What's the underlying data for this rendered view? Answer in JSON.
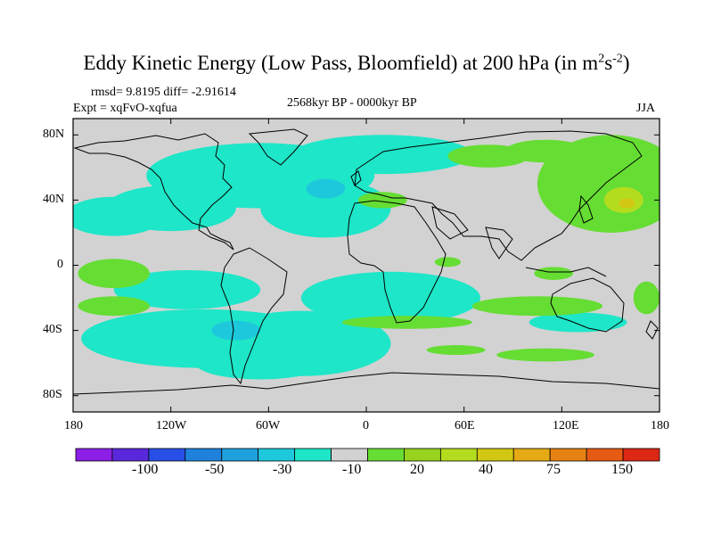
{
  "header": {
    "title_main": "Eddy Kinetic Energy (Low Pass, Bloomfield) at 200 hPa (in m",
    "title_sup1": "2",
    "title_mid": "s",
    "title_sup2": "-2",
    "title_end": ")",
    "stats": "rmsd= 9.8195 diff= -2.91614",
    "expt": "Expt = xqFvO-xqfua",
    "period": "2568kyr BP - 0000kyr BP",
    "season": "JJA"
  },
  "map": {
    "lat_labels": [
      "80N",
      "40N",
      "0",
      "40S",
      "80S"
    ],
    "lon_labels": [
      "180",
      "120W",
      "60W",
      "0",
      "60E",
      "120E",
      "180"
    ],
    "lat_range": [
      -90,
      90
    ],
    "lon_range": [
      -180,
      180
    ],
    "background_color": "#d2d2d2",
    "regions": [
      {
        "color": "#1ee6c8",
        "shape": "blob",
        "lon": -155,
        "lat": 30,
        "w": 30,
        "h": 12
      },
      {
        "color": "#1ee6c8",
        "shape": "blob",
        "lon": -120,
        "lat": 35,
        "w": 40,
        "h": 14
      },
      {
        "color": "#1ee6c8",
        "shape": "blob",
        "lon": -65,
        "lat": 55,
        "w": 70,
        "h": 20
      },
      {
        "color": "#1ee6c8",
        "shape": "blob",
        "lon": -25,
        "lat": 35,
        "w": 40,
        "h": 18
      },
      {
        "color": "#1ee6c8",
        "shape": "blob",
        "lon": 10,
        "lat": 68,
        "w": 55,
        "h": 12
      },
      {
        "color": "#1ee6c8",
        "shape": "blob",
        "lon": -110,
        "lat": -15,
        "w": 45,
        "h": 12
      },
      {
        "color": "#1ee6c8",
        "shape": "blob",
        "lon": 15,
        "lat": -20,
        "w": 55,
        "h": 16
      },
      {
        "color": "#1ee6c8",
        "shape": "blob",
        "lon": -100,
        "lat": -45,
        "w": 75,
        "h": 18
      },
      {
        "color": "#1ee6c8",
        "shape": "blob",
        "lon": -40,
        "lat": -48,
        "w": 55,
        "h": 20
      },
      {
        "color": "#1ee6c8",
        "shape": "blob",
        "lon": -65,
        "lat": -60,
        "w": 40,
        "h": 10
      },
      {
        "color": "#1ee6c8",
        "shape": "blob",
        "lon": 130,
        "lat": -35,
        "w": 30,
        "h": 6
      },
      {
        "color": "#1ec8dc",
        "shape": "blob",
        "lon": -80,
        "lat": -40,
        "w": 15,
        "h": 6
      },
      {
        "color": "#1ec8dc",
        "shape": "blob",
        "lon": -25,
        "lat": 47,
        "w": 12,
        "h": 6
      },
      {
        "color": "#66dd33",
        "shape": "blob",
        "lon": 150,
        "lat": 50,
        "w": 45,
        "h": 30
      },
      {
        "color": "#66dd33",
        "shape": "blob",
        "lon": 110,
        "lat": 70,
        "w": 25,
        "h": 7
      },
      {
        "color": "#66dd33",
        "shape": "blob",
        "lon": 75,
        "lat": 67,
        "w": 25,
        "h": 7
      },
      {
        "color": "#66dd33",
        "shape": "blob",
        "lon": -155,
        "lat": -5,
        "w": 22,
        "h": 9
      },
      {
        "color": "#66dd33",
        "shape": "blob",
        "lon": -155,
        "lat": -25,
        "w": 22,
        "h": 6
      },
      {
        "color": "#66dd33",
        "shape": "blob",
        "lon": 25,
        "lat": -35,
        "w": 40,
        "h": 4
      },
      {
        "color": "#66dd33",
        "shape": "blob",
        "lon": 105,
        "lat": -25,
        "w": 40,
        "h": 6
      },
      {
        "color": "#66dd33",
        "shape": "blob",
        "lon": 115,
        "lat": -5,
        "w": 12,
        "h": 4
      },
      {
        "color": "#66dd33",
        "shape": "blob",
        "lon": 172,
        "lat": -20,
        "w": 8,
        "h": 10
      },
      {
        "color": "#66dd33",
        "shape": "blob",
        "lon": 110,
        "lat": -55,
        "w": 30,
        "h": 4
      },
      {
        "color": "#66dd33",
        "shape": "blob",
        "lon": 55,
        "lat": -52,
        "w": 18,
        "h": 3
      },
      {
        "color": "#66dd33",
        "shape": "blob",
        "lon": 10,
        "lat": 40,
        "w": 15,
        "h": 5
      },
      {
        "color": "#66dd33",
        "shape": "blob",
        "lon": 50,
        "lat": 2,
        "w": 8,
        "h": 3
      },
      {
        "color": "#b4dc1e",
        "shape": "blob",
        "lon": 158,
        "lat": 40,
        "w": 12,
        "h": 8
      },
      {
        "color": "#d2c814",
        "shape": "blob",
        "lon": 160,
        "lat": 38,
        "w": 5,
        "h": 3
      }
    ]
  },
  "colorbar": {
    "colors": [
      "#8c1ee6",
      "#5a28dc",
      "#2850e6",
      "#1e82dc",
      "#1ea0dc",
      "#1ec8dc",
      "#1ee6c8",
      "#d2d2d2",
      "#66dd33",
      "#96d21e",
      "#b4dc1e",
      "#d2c814",
      "#e6aa14",
      "#e68214",
      "#e65a14",
      "#dc2814"
    ],
    "labels": [
      "-100",
      "-50",
      "-30",
      "-10",
      "20",
      "40",
      "75",
      "150"
    ]
  }
}
